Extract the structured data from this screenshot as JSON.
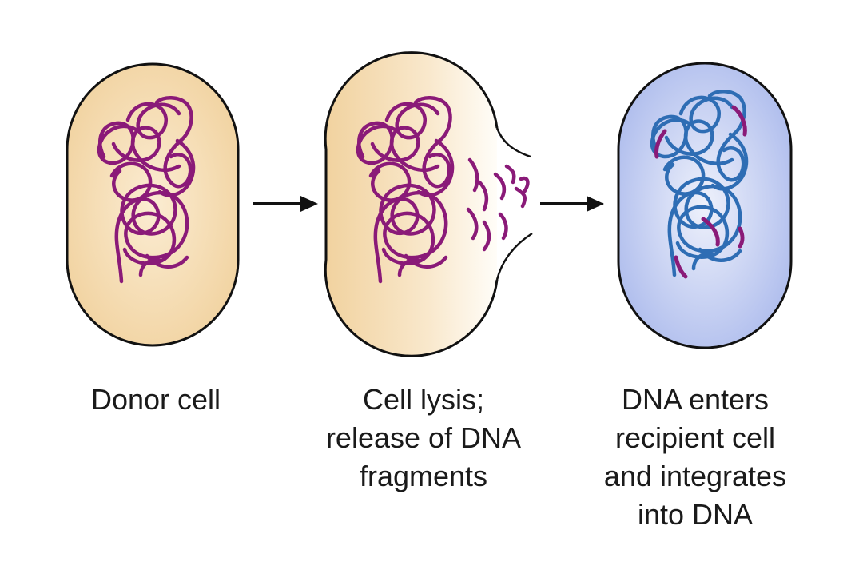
{
  "figure": {
    "steps": [
      {
        "caption": [
          "Donor cell"
        ]
      },
      {
        "caption": [
          "Cell lysis;",
          "release of DNA",
          "fragments"
        ]
      },
      {
        "caption": [
          "DNA enters",
          "recipient cell",
          "and integrates",
          "into DNA"
        ]
      }
    ]
  },
  "colors": {
    "donor_dna": "#8a1a78",
    "recipient_dna": "#2e6db4",
    "donor_cytoplasm": "#f6dcae",
    "recipient_cytoplasm": "#b4c2ee",
    "membrane": "#111111",
    "arrow": "#111111"
  },
  "icons": {
    "step_arrow": "right-arrow-icon"
  }
}
